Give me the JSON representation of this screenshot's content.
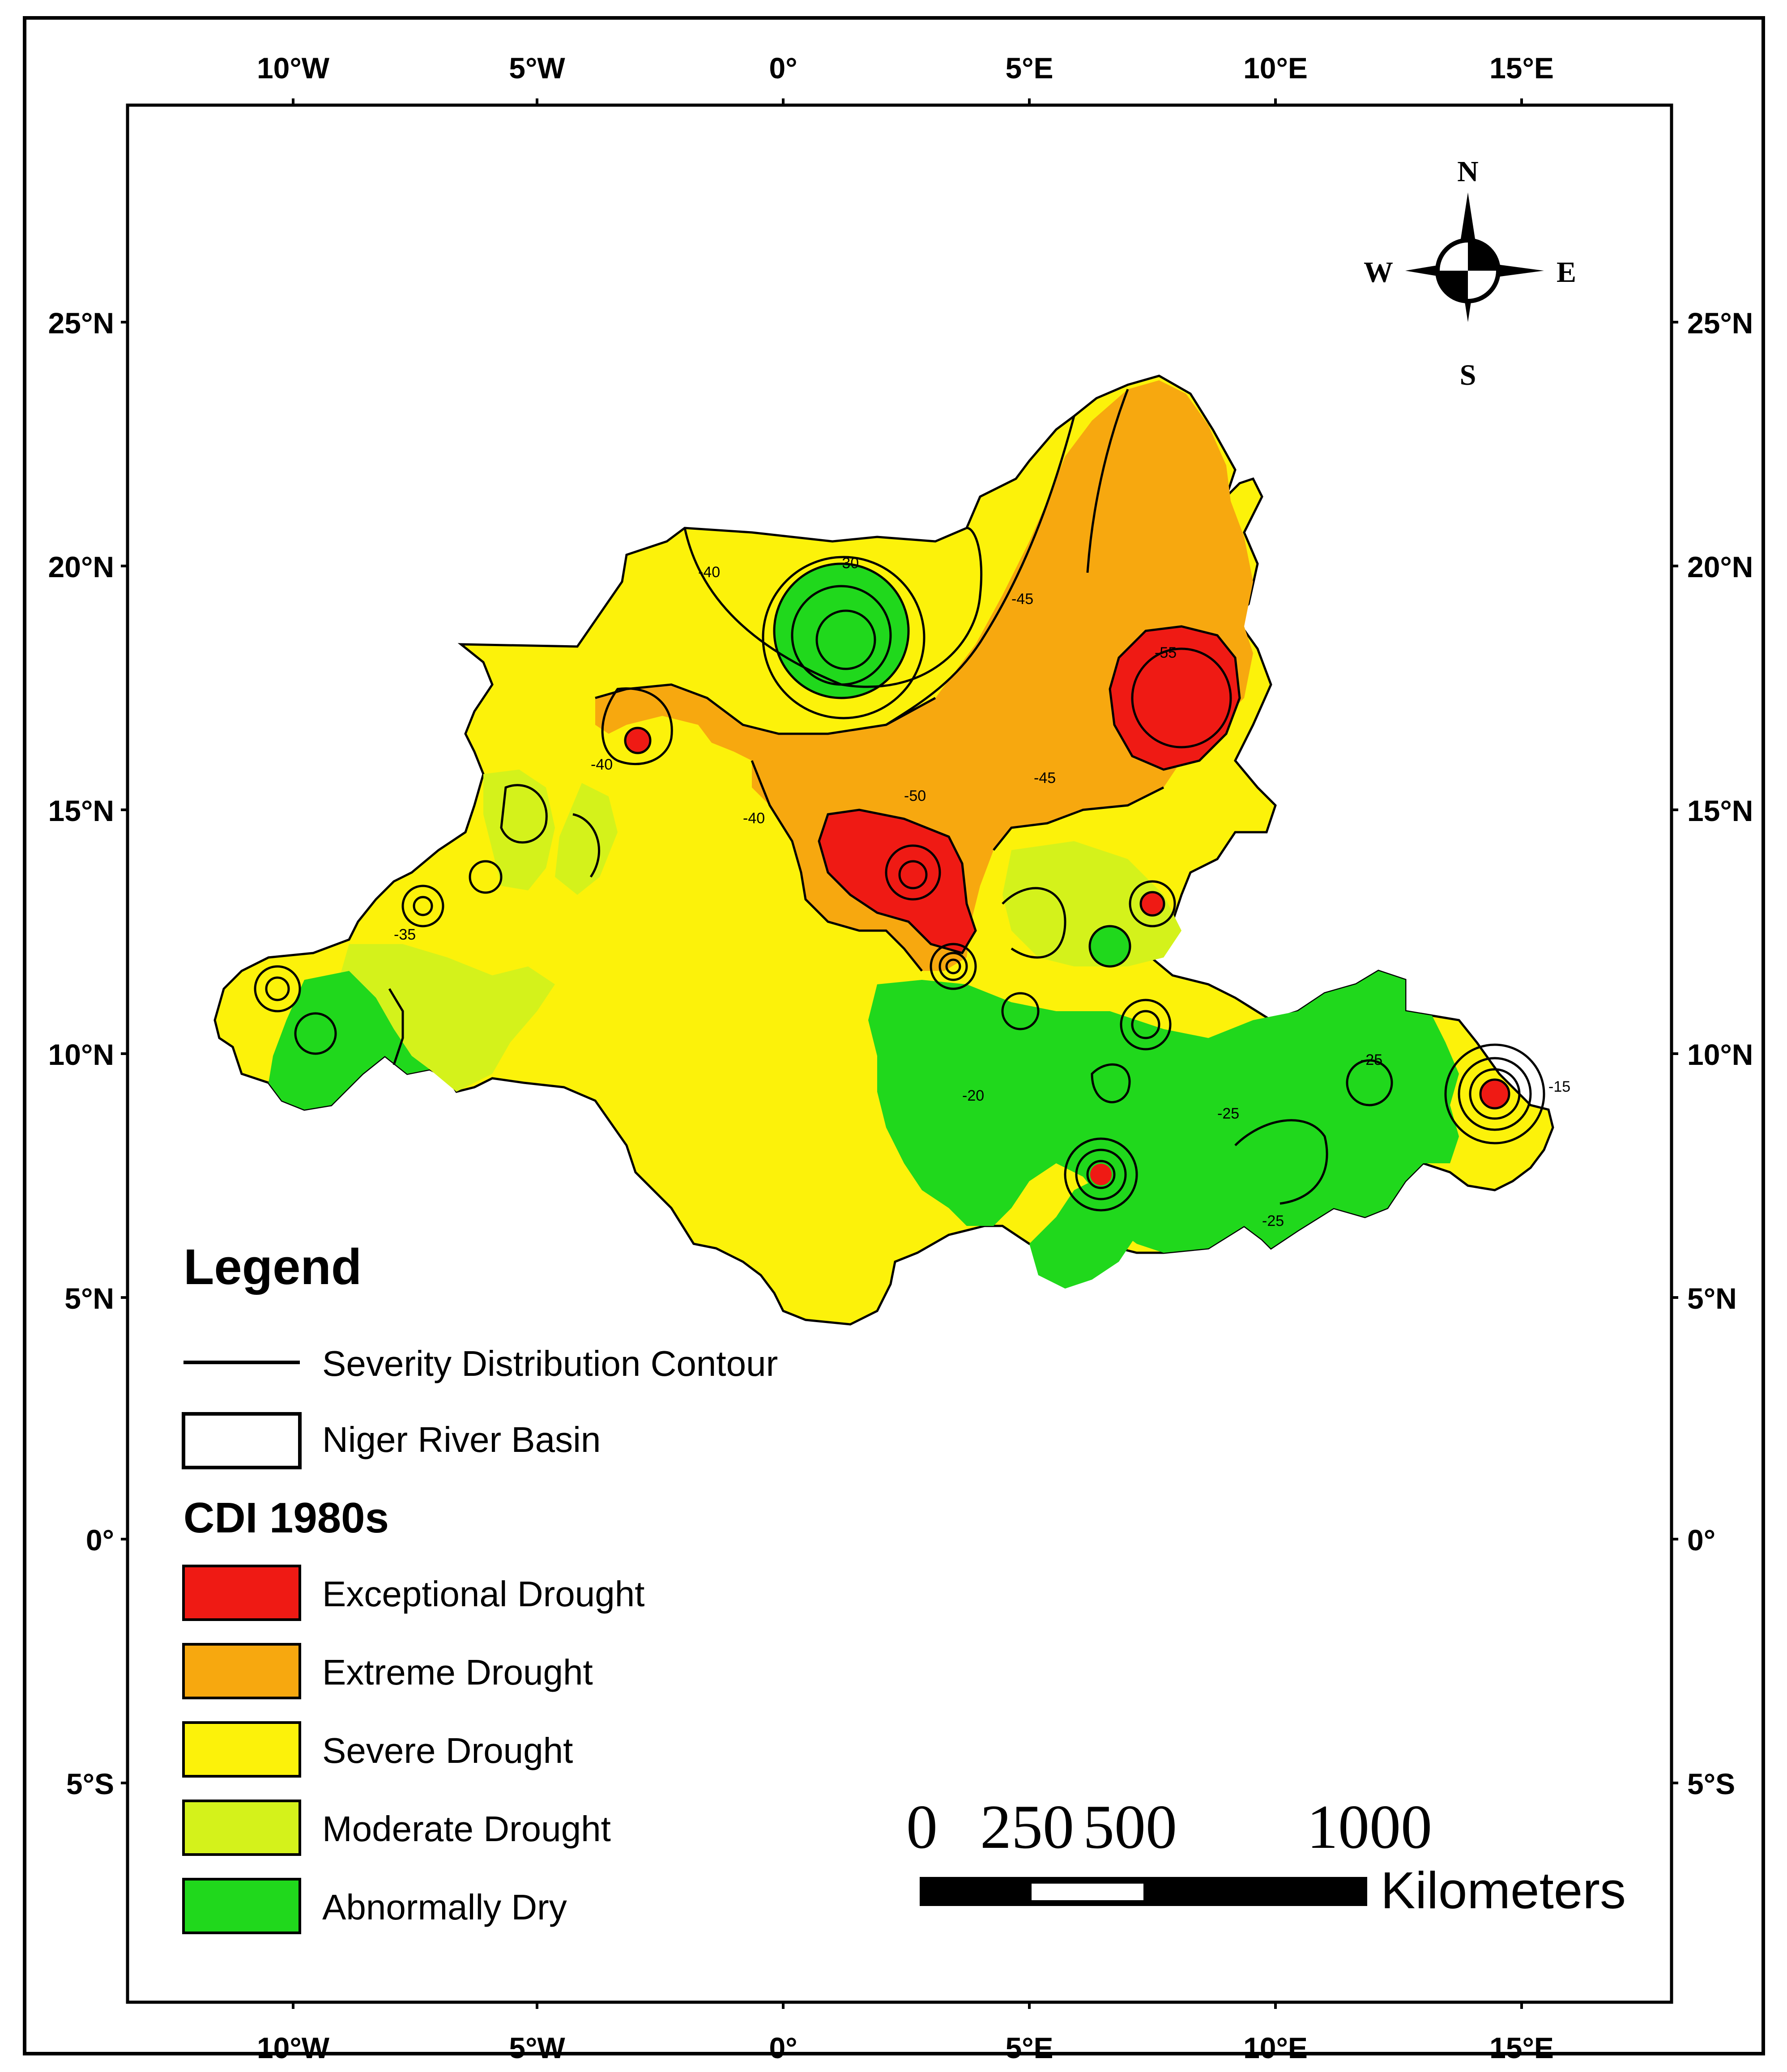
{
  "map": {
    "top_axis": [
      "10°W",
      "5°W",
      "0°",
      "5°E",
      "10°E",
      "15°E"
    ],
    "bottom_axis": [
      "10°W",
      "5°W",
      "0°",
      "5°E",
      "10°E",
      "15°E"
    ],
    "left_axis": [
      "25°N",
      "20°N",
      "15°N",
      "10°N",
      "5°N",
      "0°",
      "5°S"
    ],
    "right_axis": [
      "25°N",
      "20°N",
      "15°N",
      "10°N",
      "5°N",
      "0°",
      "5°S"
    ],
    "contour_labels": [
      "-30",
      "-35",
      "-40",
      "-45",
      "-50",
      "-55",
      "-20",
      "-25",
      "-15"
    ]
  },
  "compass": {
    "north": "N",
    "south": "S",
    "east": "E",
    "west": "W"
  },
  "legend": {
    "title": "Legend",
    "contour_label": "Severity Distribution Contour",
    "basin_label": "Niger River Basin",
    "cdi_title": "CDI 1980s",
    "classes": [
      {
        "label": "Exceptional Drought",
        "color": "#ef1a14"
      },
      {
        "label": "Extreme Drought",
        "color": "#f7a80f"
      },
      {
        "label": "Severe Drought",
        "color": "#fcf20a"
      },
      {
        "label": "Moderate Drought",
        "color": "#d4f21b"
      },
      {
        "label": "Abnormally Dry",
        "color": "#20d81c"
      }
    ]
  },
  "scale_bar": {
    "tick0": "0",
    "tick250": "250",
    "tick500": "500",
    "tick1000": "1000",
    "unit": "Kilometers"
  }
}
